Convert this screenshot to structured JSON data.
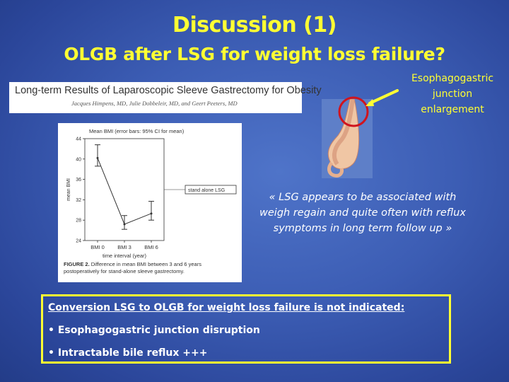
{
  "slide": {
    "title": "Discussion (1)",
    "subtitle": "OLGB after LSG for weight loss failure?"
  },
  "article": {
    "title": "Long-term Results of Laparoscopic Sleeve Gastrectomy for Obesity",
    "authors": "Jacques Himpens, MD, Julie Dobbeleir, MD, and Geert Peeters, MD"
  },
  "annotation": {
    "lines": [
      "Esophagogastric",
      "junction",
      "enlargement"
    ]
  },
  "quote": {
    "lines": [
      "« LSG appears to be associated with",
      "weigh regain and quite often with reflux",
      "symptoms in long term follow up »"
    ]
  },
  "conclusion": {
    "heading": "Conversion LSG to OLGB for weight loss failure is not indicated:",
    "items": [
      "• Esophagogastric junction disruption",
      "• Intractable bile reflux +++"
    ]
  },
  "colors": {
    "accent_yellow": "#ffff33",
    "background_blue": "#3c5db4",
    "circle_red": "#d0141e"
  },
  "chart_data": {
    "type": "line",
    "title": "Mean BMI (error bars: 95% CI for mean)",
    "xlabel": "time interval (year)",
    "ylabel": "mean BMI",
    "categories": [
      "BMI 0",
      "BMI 3",
      "BMI 6"
    ],
    "ylim": [
      24,
      44
    ],
    "yticks": [
      "44",
      "40",
      "36",
      "32",
      "28",
      "24"
    ],
    "series": [
      {
        "name": "stand alone LSG",
        "values": [
          40.2,
          27.2,
          29.3
        ],
        "ci_low": [
          38.6,
          26.2,
          28.0
        ],
        "ci_high": [
          42.8,
          28.9,
          31.7
        ]
      }
    ],
    "legend_position": "right",
    "caption_label": "FIGURE 2.",
    "caption_lines": [
      "Difference in mean BMI between 3 and 6 years",
      "postoperatively for stand-alone sleeve gastrectomy."
    ]
  }
}
